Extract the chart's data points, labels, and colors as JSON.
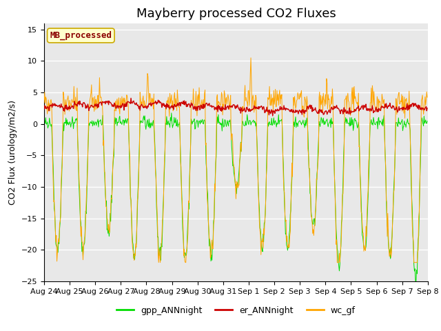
{
  "title": "Mayberry processed CO2 Fluxes",
  "ylabel": "CO2 Flux (urology/m2/s)",
  "ylim": [
    -25,
    16
  ],
  "yticks": [
    -25,
    -20,
    -15,
    -10,
    -5,
    0,
    5,
    10,
    15
  ],
  "xlabels": [
    "Aug 24",
    "Aug 25",
    "Aug 26",
    "Aug 27",
    "Aug 28",
    "Aug 29",
    "Aug 30",
    "Aug 31",
    "Sep 1",
    "Sep 2",
    "Sep 3",
    "Sep 4",
    "Sep 5",
    "Sep 6",
    "Sep 7",
    "Sep 8"
  ],
  "n_days": 15,
  "n_per_day": 48,
  "colors": {
    "green": "#00DD00",
    "red": "#CC0000",
    "orange": "#FFA500"
  },
  "legend_labels": [
    "gpp_ANNnight",
    "er_ANNnight",
    "wc_gf"
  ],
  "text_label": "MB_processed",
  "text_label_color": "#8B0000",
  "text_label_bg": "#FFFFCC",
  "axes_bg": "#E8E8E8",
  "grid_color": "white",
  "title_fontsize": 13,
  "label_fontsize": 9,
  "tick_fontsize": 8
}
